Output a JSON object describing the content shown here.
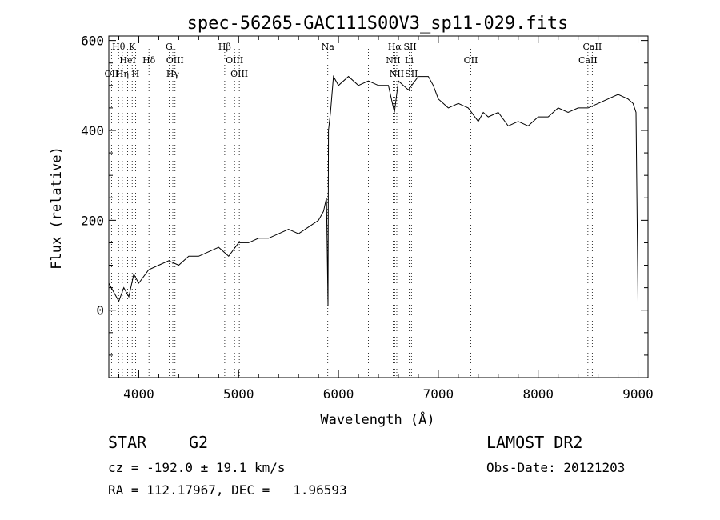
{
  "chart_data": {
    "type": "line",
    "title": "spec-56265-GAC111S00V3_sp11-029.fits",
    "xlabel": "Wavelength (Å)",
    "ylabel": "Flux (relative)",
    "xlim": [
      3700,
      9100
    ],
    "ylim": [
      -150,
      610
    ],
    "x_ticks": [
      4000,
      5000,
      6000,
      7000,
      8000,
      9000
    ],
    "x_tick_labels": [
      "4000",
      "5000",
      "6000",
      "7000",
      "8000",
      "9000"
    ],
    "y_ticks": [
      0,
      200,
      400,
      600
    ],
    "y_tick_labels": [
      "0",
      "200",
      "400",
      "600"
    ],
    "grid": false,
    "series": [
      {
        "x": [
          3700,
          3750,
          3800,
          3850,
          3900,
          3950,
          4000,
          4100,
          4200,
          4300,
          4400,
          4500,
          4600,
          4700,
          4800,
          4900,
          5000,
          5100,
          5200,
          5300,
          5400,
          5500,
          5600,
          5700,
          5800,
          5850,
          5880,
          5895,
          5900,
          5920,
          5950,
          6000,
          6100,
          6200,
          6300,
          6400,
          6500,
          6560,
          6600,
          6700,
          6800,
          6900,
          6950,
          7000,
          7100,
          7200,
          7300,
          7400,
          7450,
          7500,
          7600,
          7700,
          7800,
          7900,
          8000,
          8100,
          8200,
          8300,
          8400,
          8500,
          8600,
          8700,
          8800,
          8900,
          8950,
          8980,
          9000
        ],
        "y": [
          60,
          40,
          20,
          50,
          30,
          80,
          60,
          90,
          100,
          110,
          100,
          120,
          120,
          130,
          140,
          120,
          150,
          150,
          160,
          160,
          170,
          180,
          170,
          185,
          200,
          220,
          250,
          10,
          400,
          440,
          520,
          500,
          520,
          500,
          510,
          500,
          500,
          440,
          510,
          490,
          520,
          520,
          500,
          470,
          450,
          460,
          450,
          420,
          440,
          430,
          440,
          410,
          420,
          410,
          430,
          430,
          450,
          440,
          450,
          450,
          460,
          470,
          480,
          470,
          460,
          440,
          20
        ]
      }
    ],
    "line_labels": [
      {
        "name": "Hθ",
        "x": 3798,
        "row": 1
      },
      {
        "name": "K",
        "x": 3934,
        "row": 1
      },
      {
        "name": "HeI",
        "x": 3889,
        "row": 2
      },
      {
        "name": "Hδ",
        "x": 4102,
        "row": 2
      },
      {
        "name": "OII",
        "x": 3727,
        "row": 3
      },
      {
        "name": "Hη",
        "x": 3835,
        "row": 3
      },
      {
        "name": "H",
        "x": 3968,
        "row": 3
      },
      {
        "name": "G",
        "x": 4304,
        "row": 1
      },
      {
        "name": "OIII",
        "x": 4363,
        "row": 2
      },
      {
        "name": "Hγ",
        "x": 4341,
        "row": 3
      },
      {
        "name": "Hβ",
        "x": 4861,
        "row": 1
      },
      {
        "name": "OIII",
        "x": 4959,
        "row": 2
      },
      {
        "name": "OIII",
        "x": 5007,
        "row": 3
      },
      {
        "name": "Na",
        "x": 5893,
        "row": 1
      },
      {
        "name": "Hα",
        "x": 6563,
        "row": 1
      },
      {
        "name": "SII",
        "x": 6717,
        "row": 1
      },
      {
        "name": "NII",
        "x": 6548,
        "row": 2
      },
      {
        "name": "Li",
        "x": 6708,
        "row": 2
      },
      {
        "name": "NII",
        "x": 6584,
        "row": 3
      },
      {
        "name": "SII",
        "x": 6731,
        "row": 3
      },
      {
        "name": "OII",
        "x": 7325,
        "row": 2
      },
      {
        "name": "CaII",
        "x": 8542,
        "row": 1
      },
      {
        "name": "CaII",
        "x": 8498,
        "row": 2
      }
    ],
    "line_markers": [
      3727,
      3798,
      3835,
      3889,
      3934,
      3968,
      4102,
      4304,
      4341,
      4363,
      4861,
      4959,
      5007,
      5893,
      6300,
      6548,
      6563,
      6584,
      6708,
      6717,
      6731,
      7325,
      8498,
      8542
    ]
  },
  "info": {
    "class": "STAR",
    "subclass": "G2",
    "survey": "LAMOST DR2",
    "cz": "cz = -192.0 ± 19.1 km/s",
    "obs_date": "Obs-Date: 20121203",
    "coords": "RA = 112.17967, DEC =   1.96593"
  }
}
